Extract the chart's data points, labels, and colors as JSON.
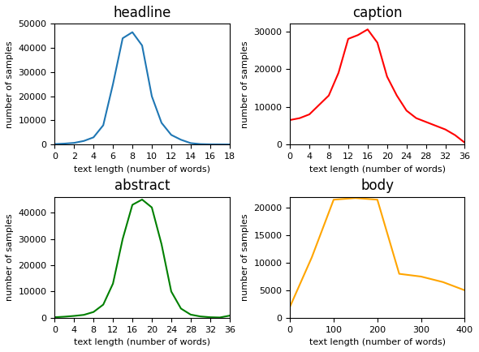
{
  "headline": {
    "title": "headline",
    "color": "#1f77b4",
    "x": [
      0,
      1,
      2,
      3,
      4,
      5,
      6,
      7,
      8,
      9,
      10,
      11,
      12,
      13,
      14,
      15,
      16,
      17,
      18
    ],
    "y": [
      200,
      400,
      700,
      1500,
      3000,
      8000,
      25000,
      44000,
      46500,
      41000,
      20000,
      9000,
      4000,
      2000,
      600,
      200,
      100,
      80,
      50
    ],
    "xlabel": "text length (number of words)",
    "ylabel": "number of samples",
    "xticks": [
      0,
      2,
      4,
      6,
      8,
      10,
      12,
      14,
      16,
      18
    ],
    "xlim": [
      0,
      18
    ],
    "ylim": [
      0,
      50000
    ]
  },
  "caption": {
    "title": "caption",
    "color": "#ff0000",
    "x": [
      0,
      2,
      4,
      6,
      8,
      10,
      12,
      14,
      16,
      18,
      20,
      22,
      24,
      26,
      28,
      30,
      32,
      34,
      36
    ],
    "y": [
      6500,
      7000,
      8000,
      10500,
      13000,
      19000,
      28000,
      29000,
      30500,
      27000,
      18000,
      13000,
      9000,
      7000,
      6000,
      5000,
      4000,
      2500,
      500
    ],
    "xlabel": "text length (number of words)",
    "ylabel": "number of samples",
    "xticks": [
      0,
      4,
      8,
      12,
      16,
      20,
      24,
      28,
      32,
      36
    ],
    "xlim": [
      0,
      36
    ],
    "ylim": [
      0,
      32000
    ]
  },
  "abstract": {
    "title": "abstract",
    "color": "#008000",
    "x": [
      0,
      2,
      4,
      6,
      8,
      10,
      12,
      14,
      16,
      18,
      20,
      22,
      24,
      26,
      28,
      30,
      32,
      34,
      36
    ],
    "y": [
      200,
      400,
      700,
      1100,
      2200,
      5000,
      13000,
      30000,
      43000,
      45000,
      42000,
      28000,
      10000,
      3500,
      1200,
      500,
      200,
      100,
      800
    ],
    "xlabel": "text length (number of words)",
    "ylabel": "number of samples",
    "xticks": [
      0,
      4,
      8,
      12,
      16,
      20,
      24,
      28,
      32,
      36
    ],
    "xlim": [
      0,
      36
    ],
    "ylim": [
      0,
      46000
    ]
  },
  "body": {
    "title": "body",
    "color": "#ffa500",
    "x": [
      0,
      50,
      100,
      150,
      200,
      250,
      300,
      350,
      400
    ],
    "y": [
      2000,
      11000,
      21500,
      21800,
      21500,
      8000,
      7500,
      6500,
      5000
    ],
    "xlabel": "text length (number of words)",
    "ylabel": "number of samples",
    "xticks": [
      0,
      100,
      200,
      300,
      400
    ],
    "xlim": [
      0,
      400
    ],
    "ylim": [
      0,
      22000
    ]
  }
}
